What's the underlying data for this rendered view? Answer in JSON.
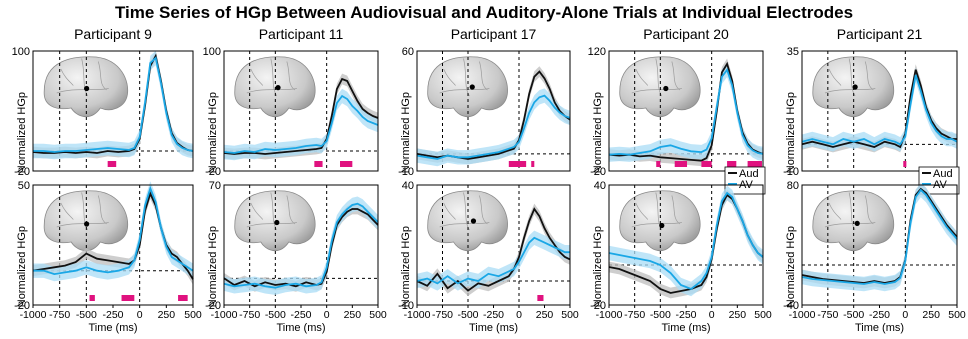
{
  "title": "Time Series of HGp Between Audiovisual and Auditory-Alone Trials at Individual Electrodes",
  "xlabel": "Time (ms)",
  "ylabel": "Normalized HGp",
  "xticks": [
    -1000,
    -750,
    -500,
    -250,
    0,
    250,
    500
  ],
  "legend": [
    "Aud",
    "AV"
  ],
  "colors": {
    "aud": "#111111",
    "av": "#1aa7e6",
    "sig": "#e0127f",
    "aud_band": "#bdbdbd",
    "av_band": "#a9dcf5"
  },
  "participants": [
    "Participant 9",
    "Participant 11",
    "Participant 17",
    "Participant 20",
    "Participant 21"
  ],
  "chart_data": [
    {
      "type": "line",
      "participant": "Participant 9",
      "row": 0,
      "ylim": [
        -20,
        100
      ],
      "legend": false,
      "x": [
        -1000,
        -900,
        -800,
        -700,
        -600,
        -500,
        -400,
        -300,
        -200,
        -100,
        -50,
        0,
        50,
        100,
        150,
        200,
        250,
        300,
        350,
        400,
        450,
        500
      ],
      "series": [
        {
          "name": "Aud",
          "values": [
            -1,
            -2,
            -2,
            -1,
            -2,
            -1,
            -2,
            0,
            -1,
            0,
            2,
            12,
            45,
            85,
            95,
            70,
            40,
            18,
            8,
            4,
            1,
            0
          ]
        },
        {
          "name": "AV",
          "values": [
            0,
            0,
            -1,
            0,
            0,
            1,
            2,
            3,
            2,
            1,
            3,
            14,
            48,
            88,
            93,
            68,
            38,
            16,
            7,
            3,
            1,
            0
          ]
        }
      ],
      "sig_windows": [
        [
          -300,
          -220
        ]
      ]
    },
    {
      "type": "line",
      "participant": "Participant 11",
      "row": 0,
      "ylim": [
        -20,
        100
      ],
      "legend": false,
      "x": [
        -1000,
        -900,
        -800,
        -700,
        -600,
        -500,
        -400,
        -300,
        -200,
        -100,
        -50,
        0,
        50,
        100,
        150,
        200,
        250,
        300,
        350,
        400,
        450,
        500
      ],
      "series": [
        {
          "name": "Aud",
          "values": [
            -2,
            -3,
            -2,
            -2,
            -3,
            -2,
            -1,
            0,
            1,
            2,
            3,
            12,
            35,
            62,
            72,
            70,
            60,
            50,
            42,
            38,
            35,
            33
          ]
        },
        {
          "name": "AV",
          "values": [
            -1,
            -2,
            0,
            -1,
            2,
            1,
            2,
            3,
            5,
            6,
            5,
            10,
            28,
            48,
            55,
            52,
            45,
            40,
            34,
            30,
            28,
            26
          ]
        }
      ],
      "sig_windows": [
        [
          -120,
          -40
        ],
        [
          130,
          250
        ]
      ]
    },
    {
      "type": "line",
      "participant": "Participant 17",
      "row": 0,
      "ylim": [
        -10,
        60
      ],
      "legend": false,
      "x": [
        -1000,
        -900,
        -800,
        -700,
        -600,
        -500,
        -400,
        -300,
        -200,
        -100,
        -50,
        0,
        50,
        100,
        150,
        200,
        250,
        300,
        350,
        400,
        450,
        500
      ],
      "series": [
        {
          "name": "Aud",
          "values": [
            0,
            -1,
            -2,
            -1,
            -2,
            -3,
            -2,
            -1,
            0,
            2,
            3,
            8,
            20,
            35,
            45,
            48,
            44,
            38,
            30,
            25,
            22,
            20
          ]
        },
        {
          "name": "AV",
          "values": [
            -1,
            -2,
            -3,
            -1,
            -2,
            -2,
            -1,
            0,
            1,
            3,
            4,
            7,
            15,
            24,
            30,
            33,
            34,
            31,
            27,
            24,
            22,
            21
          ]
        }
      ],
      "sig_windows": [
        [
          -100,
          70
        ],
        [
          120,
          150
        ]
      ]
    },
    {
      "type": "line",
      "participant": "Participant 20",
      "row": 0,
      "ylim": [
        -20,
        120
      ],
      "legend": true,
      "x": [
        -1000,
        -900,
        -800,
        -700,
        -600,
        -500,
        -400,
        -300,
        -200,
        -100,
        -50,
        0,
        50,
        100,
        150,
        200,
        250,
        300,
        350,
        400,
        450,
        500
      ],
      "series": [
        {
          "name": "Aud",
          "values": [
            -1,
            -2,
            -1,
            -3,
            -2,
            -4,
            -5,
            -6,
            -7,
            -8,
            -5,
            10,
            50,
            95,
            105,
            85,
            50,
            25,
            12,
            5,
            2,
            0
          ]
        },
        {
          "name": "AV",
          "values": [
            -1,
            0,
            -1,
            1,
            3,
            8,
            10,
            6,
            3,
            2,
            5,
            18,
            55,
            90,
            98,
            80,
            48,
            22,
            10,
            4,
            1,
            0
          ]
        }
      ],
      "sig_windows": [
        [
          -540,
          -500
        ],
        [
          -360,
          -240
        ],
        [
          -100,
          0
        ],
        [
          150,
          240
        ],
        [
          350,
          490
        ]
      ]
    },
    {
      "type": "line",
      "participant": "Participant 21",
      "row": 0,
      "ylim": [
        -10,
        35
      ],
      "legend": true,
      "x": [
        -1000,
        -900,
        -800,
        -700,
        -600,
        -500,
        -400,
        -300,
        -200,
        -100,
        -50,
        0,
        50,
        100,
        150,
        200,
        250,
        300,
        350,
        400,
        450,
        500
      ],
      "series": [
        {
          "name": "Aud",
          "values": [
            0,
            1,
            0,
            -1,
            0,
            1,
            0,
            -1,
            1,
            0,
            -1,
            4,
            18,
            28,
            22,
            14,
            9,
            6,
            4,
            3,
            2,
            2
          ]
        },
        {
          "name": "AV",
          "values": [
            1,
            2,
            1,
            0,
            2,
            1,
            2,
            0,
            2,
            1,
            0,
            3,
            15,
            26,
            20,
            13,
            8,
            5,
            3,
            2,
            2,
            1
          ]
        }
      ],
      "sig_windows": [
        [
          -20,
          10
        ]
      ]
    },
    {
      "type": "line",
      "participant": "Participant 9",
      "row": 1,
      "ylim": [
        -20,
        50
      ],
      "legend": false,
      "x": [
        -1000,
        -900,
        -800,
        -700,
        -600,
        -500,
        -400,
        -300,
        -200,
        -100,
        -50,
        0,
        50,
        100,
        150,
        200,
        250,
        300,
        350,
        400,
        450,
        500
      ],
      "series": [
        {
          "name": "Aud",
          "values": [
            0,
            1,
            2,
            3,
            5,
            10,
            7,
            6,
            5,
            4,
            6,
            15,
            35,
            45,
            38,
            25,
            15,
            10,
            8,
            4,
            0,
            -5
          ]
        },
        {
          "name": "AV",
          "values": [
            0,
            0,
            -2,
            -1,
            0,
            2,
            0,
            -1,
            0,
            2,
            6,
            18,
            38,
            48,
            40,
            25,
            14,
            8,
            6,
            4,
            2,
            0
          ]
        }
      ],
      "sig_windows": [
        [
          -470,
          -420
        ],
        [
          -170,
          -50
        ],
        [
          360,
          450
        ]
      ]
    },
    {
      "type": "line",
      "participant": "Participant 11",
      "row": 1,
      "ylim": [
        -20,
        70
      ],
      "legend": false,
      "x": [
        -1000,
        -900,
        -800,
        -700,
        -600,
        -500,
        -400,
        -300,
        -200,
        -100,
        -50,
        0,
        50,
        100,
        150,
        200,
        250,
        300,
        350,
        400,
        450,
        500
      ],
      "series": [
        {
          "name": "Aud",
          "values": [
            0,
            -5,
            -2,
            -6,
            -3,
            -5,
            -4,
            -6,
            -3,
            -5,
            -4,
            5,
            25,
            40,
            46,
            50,
            52,
            52,
            50,
            48,
            44,
            40
          ]
        },
        {
          "name": "AV",
          "values": [
            -4,
            -6,
            -5,
            -4,
            -6,
            -7,
            -5,
            -4,
            -6,
            -5,
            -3,
            8,
            28,
            42,
            48,
            52,
            55,
            56,
            54,
            50,
            46,
            42
          ]
        }
      ],
      "sig_windows": []
    },
    {
      "type": "line",
      "participant": "Participant 17",
      "row": 1,
      "ylim": [
        -10,
        40
      ],
      "legend": false,
      "x": [
        -1000,
        -900,
        -800,
        -700,
        -600,
        -500,
        -400,
        -300,
        -200,
        -100,
        -50,
        0,
        50,
        100,
        150,
        200,
        250,
        300,
        350,
        400,
        450,
        500
      ],
      "series": [
        {
          "name": "Aud",
          "values": [
            0,
            -2,
            3,
            -3,
            0,
            -4,
            -1,
            -2,
            0,
            2,
            5,
            10,
            18,
            25,
            30,
            27,
            22,
            18,
            15,
            12,
            10,
            9
          ]
        },
        {
          "name": "AV",
          "values": [
            0,
            1,
            -1,
            2,
            -1,
            1,
            0,
            3,
            2,
            4,
            5,
            8,
            12,
            16,
            18,
            17,
            16,
            15,
            14,
            13,
            12,
            12
          ]
        }
      ],
      "sig_windows": [
        [
          180,
          240
        ]
      ]
    },
    {
      "type": "line",
      "participant": "Participant 20",
      "row": 1,
      "ylim": [
        -20,
        40
      ],
      "legend": false,
      "x": [
        -1000,
        -900,
        -800,
        -700,
        -600,
        -500,
        -400,
        -300,
        -200,
        -100,
        -50,
        0,
        50,
        100,
        150,
        200,
        250,
        300,
        350,
        400,
        450,
        500
      ],
      "series": [
        {
          "name": "Aud",
          "values": [
            -1,
            -2,
            -4,
            -6,
            -8,
            -12,
            -14,
            -13,
            -12,
            -10,
            -6,
            3,
            18,
            30,
            35,
            33,
            28,
            22,
            15,
            10,
            6,
            4
          ]
        },
        {
          "name": "AV",
          "values": [
            6,
            5,
            4,
            3,
            2,
            0,
            -4,
            -10,
            -12,
            -8,
            -4,
            4,
            20,
            32,
            36,
            34,
            28,
            22,
            15,
            10,
            6,
            4
          ]
        }
      ],
      "sig_windows": []
    },
    {
      "type": "line",
      "participant": "Participant 21",
      "row": 1,
      "ylim": [
        -40,
        80
      ],
      "legend": false,
      "x": [
        -1000,
        -900,
        -800,
        -700,
        -600,
        -500,
        -400,
        -300,
        -200,
        -100,
        -50,
        0,
        50,
        100,
        150,
        200,
        250,
        300,
        350,
        400,
        450,
        500
      ],
      "series": [
        {
          "name": "Aud",
          "values": [
            -10,
            -12,
            -14,
            -15,
            -16,
            -17,
            -18,
            -16,
            -18,
            -16,
            -12,
            5,
            45,
            70,
            76,
            72,
            64,
            56,
            48,
            40,
            34,
            28
          ]
        },
        {
          "name": "AV",
          "values": [
            -12,
            -14,
            -15,
            -16,
            -17,
            -18,
            -19,
            -17,
            -19,
            -17,
            -13,
            4,
            42,
            68,
            75,
            70,
            62,
            54,
            46,
            38,
            32,
            26
          ]
        }
      ],
      "sig_windows": []
    }
  ]
}
